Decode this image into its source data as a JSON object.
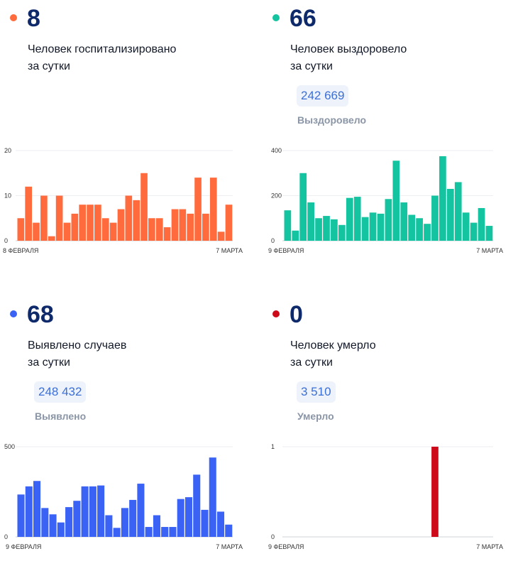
{
  "panels": [
    {
      "color": "#ff6b3d",
      "value": "8",
      "desc_line1": "Человек госпитализировано",
      "desc_line2": "за сутки",
      "total": null,
      "total_label": null
    },
    {
      "color": "#14c4a0",
      "value": "66",
      "desc_line1": "Человек выздоровело",
      "desc_line2": "за сутки",
      "total": "242 669",
      "total_label": "Выздоровело"
    },
    {
      "color": "#3a62f5",
      "value": "68",
      "desc_line1": "Выявлено случаев",
      "desc_line2": "за сутки",
      "total": "248 432",
      "total_label": "Выявлено"
    },
    {
      "color": "#cc0a1a",
      "value": "0",
      "desc_line1": "Человек умерло",
      "desc_line2": "за сутки",
      "total": "3 510",
      "total_label": "Умерло"
    }
  ],
  "chart_data": [
    {
      "type": "bar",
      "color": "#ff6b3d",
      "x_start_label": "8 ФЕВРАЛЯ",
      "x_end_label": "7 МАРТА",
      "yticks": [
        0,
        10,
        20
      ],
      "ylim": [
        0,
        20
      ],
      "values": [
        5,
        12,
        4,
        10,
        1,
        10,
        4,
        6,
        8,
        8,
        8,
        5,
        4,
        7,
        10,
        9,
        15,
        5,
        5,
        3,
        7,
        7,
        6,
        14,
        6,
        14,
        2,
        8
      ]
    },
    {
      "type": "bar",
      "color": "#14c4a0",
      "x_start_label": "9 ФЕВРАЛЯ",
      "x_end_label": "7 МАРТА",
      "yticks": [
        0,
        200,
        400
      ],
      "ylim": [
        0,
        400
      ],
      "values": [
        135,
        45,
        300,
        170,
        100,
        110,
        95,
        70,
        190,
        195,
        105,
        125,
        120,
        185,
        355,
        170,
        115,
        100,
        75,
        200,
        375,
        230,
        260,
        125,
        80,
        145,
        66
      ]
    },
    {
      "type": "bar",
      "color": "#3a62f5",
      "x_start_label": "9 ФЕВРАЛЯ",
      "x_end_label": "7 МАРТА",
      "yticks": [
        0,
        500
      ],
      "ylim": [
        0,
        500
      ],
      "values": [
        235,
        280,
        310,
        160,
        125,
        80,
        165,
        200,
        280,
        280,
        285,
        120,
        50,
        160,
        205,
        295,
        55,
        120,
        55,
        55,
        210,
        220,
        345,
        150,
        440,
        140,
        68
      ]
    },
    {
      "type": "bar",
      "color": "#cc0a1a",
      "x_start_label": "9 ФЕВРАЛЯ",
      "x_end_label": "7 МАРТА",
      "yticks": [
        0,
        1
      ],
      "ylim": [
        0,
        1
      ],
      "values": [
        0,
        0,
        0,
        0,
        0,
        0,
        0,
        0,
        0,
        0,
        0,
        0,
        0,
        0,
        0,
        0,
        0,
        0,
        0,
        1,
        0,
        0,
        0,
        0,
        0,
        0,
        0
      ]
    }
  ]
}
